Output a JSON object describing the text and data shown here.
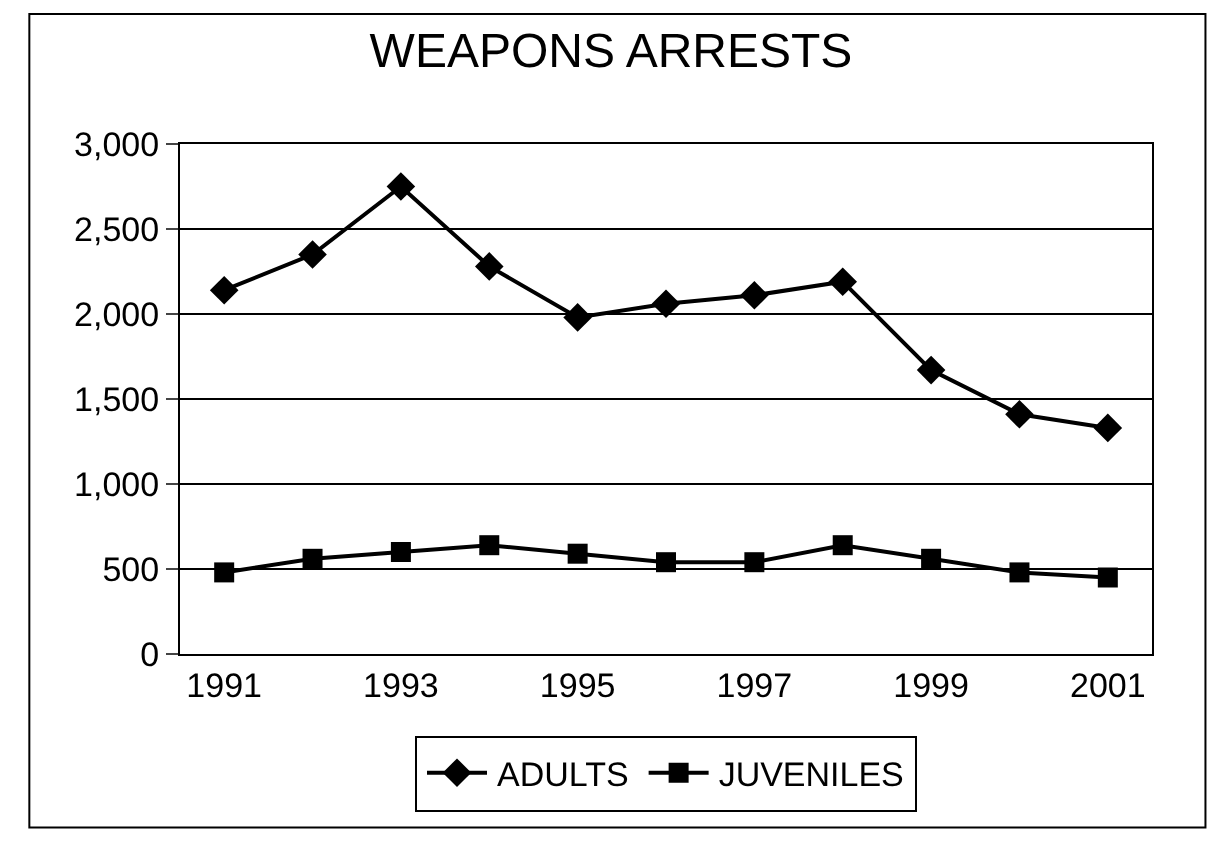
{
  "chart_data": {
    "type": "line",
    "title": "WEAPONS ARRESTS",
    "categories": [
      "1991",
      null,
      "1993",
      null,
      "1995",
      null,
      "1997",
      null,
      "1999",
      null,
      "2001"
    ],
    "series": [
      {
        "name": "ADULTS",
        "color": "#000000",
        "marker": "diamond",
        "values": [
          2140,
          2350,
          2750,
          2280,
          1980,
          2060,
          2110,
          2190,
          1670,
          1410,
          1330
        ]
      },
      {
        "name": "JUVENILES",
        "color": "#000000",
        "marker": "square",
        "values": [
          480,
          560,
          600,
          640,
          590,
          540,
          540,
          640,
          560,
          480,
          450
        ]
      }
    ],
    "ylim": [
      0,
      3000
    ],
    "yticks": [
      {
        "value": 0,
        "label": "0"
      },
      {
        "value": 500,
        "label": "500"
      },
      {
        "value": 1000,
        "label": "1,000"
      },
      {
        "value": 1500,
        "label": "1,500"
      },
      {
        "value": 2000,
        "label": "2,000"
      },
      {
        "value": 2500,
        "label": "2,500"
      },
      {
        "value": 3000,
        "label": "3,000"
      }
    ],
    "grid": "y",
    "legend": "bottom",
    "line_style": "solid"
  }
}
